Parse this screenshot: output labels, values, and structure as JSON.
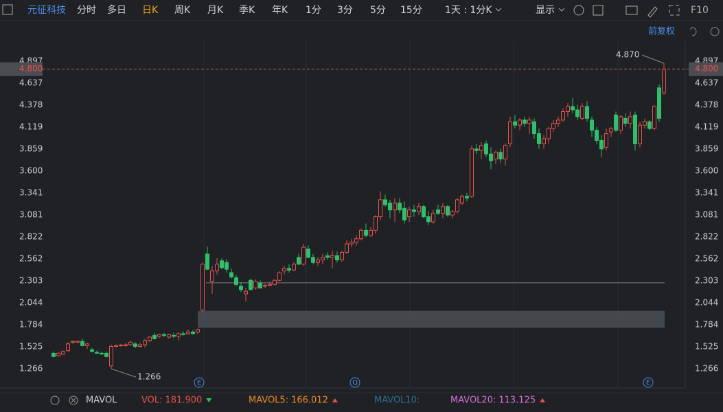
{
  "toolbar": {
    "stock_name": "元征科技",
    "periods": [
      "分时",
      "多日",
      "日K",
      "周K",
      "月K",
      "季K",
      "年K",
      "1分",
      "3分",
      "5分",
      "15分",
      "1天 : 1分K"
    ],
    "active_period": 2,
    "display": "显示",
    "f10": "F10",
    "adjust": "前复权"
  },
  "chart_data": {
    "type": "candlestick",
    "up_color": "#e6534c",
    "down_color": "#2ec06a",
    "ylim": [
      1.04,
      5.13
    ],
    "yticks": [
      4.897,
      4.637,
      4.378,
      4.119,
      3.859,
      {
        "value": 3.6,
        "label": "3.600"
      },
      3.341,
      3.081,
      2.822,
      2.562,
      2.303,
      2.044,
      1.784,
      1.525,
      1.266
    ],
    "last_price": {
      "value": 4.8,
      "label": "4.800"
    },
    "high_label": {
      "value": 4.87,
      "label": "4.870"
    },
    "low_label": 1.266,
    "gap_zone": [
      1.75,
      1.95
    ],
    "level_line": 2.28,
    "events": [
      "E",
      "Q",
      "E"
    ],
    "candles": [
      [
        1.45,
        1.47,
        1.4,
        1.41
      ],
      [
        1.42,
        1.46,
        1.41,
        1.45
      ],
      [
        1.44,
        1.48,
        1.43,
        1.47
      ],
      [
        1.48,
        1.58,
        1.47,
        1.56
      ],
      [
        1.58,
        1.6,
        1.56,
        1.59
      ],
      [
        1.58,
        1.6,
        1.57,
        1.59
      ],
      [
        1.59,
        1.62,
        1.53,
        1.54
      ],
      [
        1.54,
        1.57,
        1.5,
        1.56
      ],
      [
        1.49,
        1.51,
        1.46,
        1.47
      ],
      [
        1.46,
        1.48,
        1.44,
        1.45
      ],
      [
        1.45,
        1.47,
        1.43,
        1.44
      ],
      [
        1.45,
        1.47,
        1.4,
        1.41
      ],
      [
        1.3,
        1.55,
        1.266,
        1.53
      ],
      [
        1.53,
        1.55,
        1.52,
        1.54
      ],
      [
        1.54,
        1.56,
        1.53,
        1.545
      ],
      [
        1.54,
        1.57,
        1.53,
        1.55
      ],
      [
        1.55,
        1.6,
        1.54,
        1.58
      ],
      [
        1.56,
        1.58,
        1.51,
        1.53
      ],
      [
        1.53,
        1.57,
        1.52,
        1.55
      ],
      [
        1.55,
        1.62,
        1.52,
        1.6
      ],
      [
        1.6,
        1.65,
        1.58,
        1.64
      ],
      [
        1.66,
        1.69,
        1.61,
        1.62
      ],
      [
        1.65,
        1.68,
        1.63,
        1.67
      ],
      [
        1.67,
        1.69,
        1.64,
        1.66
      ],
      [
        1.64,
        1.68,
        1.62,
        1.67
      ],
      [
        1.66,
        1.69,
        1.63,
        1.65
      ],
      [
        1.65,
        1.7,
        1.6,
        1.68
      ],
      [
        1.68,
        1.71,
        1.66,
        1.67
      ],
      [
        1.68,
        1.73,
        1.67,
        1.7
      ],
      [
        1.7,
        1.72,
        1.67,
        1.68
      ],
      [
        1.7,
        1.74,
        1.68,
        1.73
      ],
      [
        1.96,
        2.52,
        1.93,
        2.5
      ],
      [
        2.62,
        2.71,
        2.43,
        2.44
      ],
      [
        2.3,
        2.48,
        2.15,
        2.42
      ],
      [
        2.42,
        2.57,
        2.38,
        2.5
      ],
      [
        2.54,
        2.57,
        2.44,
        2.46
      ],
      [
        2.52,
        2.56,
        2.4,
        2.44
      ],
      [
        2.4,
        2.45,
        2.33,
        2.35
      ],
      [
        2.34,
        2.37,
        2.24,
        2.26
      ],
      [
        2.24,
        2.29,
        2.17,
        2.2
      ],
      [
        2.15,
        2.22,
        2.06,
        2.18
      ],
      [
        2.31,
        2.33,
        2.19,
        2.2
      ],
      [
        2.22,
        2.32,
        2.2,
        2.3
      ],
      [
        2.28,
        2.31,
        2.21,
        2.22
      ],
      [
        2.24,
        2.27,
        2.22,
        2.25
      ],
      [
        2.25,
        2.29,
        2.24,
        2.26
      ],
      [
        2.26,
        2.32,
        2.25,
        2.31
      ],
      [
        2.31,
        2.42,
        2.3,
        2.4
      ],
      [
        2.42,
        2.48,
        2.38,
        2.45
      ],
      [
        2.45,
        2.5,
        2.4,
        2.43
      ],
      [
        2.43,
        2.52,
        2.42,
        2.5
      ],
      [
        2.58,
        2.62,
        2.49,
        2.5
      ],
      [
        2.5,
        2.74,
        2.48,
        2.7
      ],
      [
        2.68,
        2.72,
        2.57,
        2.58
      ],
      [
        2.58,
        2.62,
        2.5,
        2.52
      ],
      [
        2.52,
        2.58,
        2.48,
        2.55
      ],
      [
        2.55,
        2.62,
        2.5,
        2.58
      ],
      [
        2.6,
        2.64,
        2.55,
        2.58
      ],
      [
        2.58,
        2.66,
        2.45,
        2.6
      ],
      [
        2.6,
        2.65,
        2.52,
        2.55
      ],
      [
        2.55,
        2.66,
        2.53,
        2.64
      ],
      [
        2.64,
        2.78,
        2.62,
        2.74
      ],
      [
        2.74,
        2.8,
        2.7,
        2.76
      ],
      [
        2.76,
        2.84,
        2.72,
        2.8
      ],
      [
        2.8,
        2.92,
        2.78,
        2.9
      ],
      [
        2.9,
        2.98,
        2.82,
        2.84
      ],
      [
        2.84,
        2.94,
        2.82,
        2.9
      ],
      [
        2.9,
        3.08,
        2.86,
        3.06
      ],
      [
        3.06,
        3.36,
        3.02,
        3.26
      ],
      [
        3.26,
        3.32,
        3.18,
        3.2
      ],
      [
        3.22,
        3.26,
        3.04,
        3.14
      ],
      [
        3.14,
        3.28,
        3.0,
        3.22
      ],
      [
        3.22,
        3.28,
        3.1,
        3.14
      ],
      [
        3.16,
        3.24,
        2.98,
        3.02
      ],
      [
        3.06,
        3.18,
        3.0,
        3.14
      ],
      [
        3.14,
        3.2,
        3.06,
        3.12
      ],
      [
        3.12,
        3.22,
        3.08,
        3.18
      ],
      [
        3.18,
        3.2,
        3.04,
        3.06
      ],
      [
        3.06,
        3.12,
        2.96,
        3.0
      ],
      [
        3.0,
        3.14,
        2.98,
        3.1
      ],
      [
        3.14,
        3.2,
        3.08,
        3.1
      ],
      [
        3.1,
        3.22,
        3.04,
        3.18
      ],
      [
        3.18,
        3.2,
        3.06,
        3.08
      ],
      [
        3.08,
        3.14,
        3.04,
        3.12
      ],
      [
        3.12,
        3.28,
        3.1,
        3.26
      ],
      [
        3.22,
        3.32,
        3.2,
        3.3
      ],
      [
        3.3,
        3.34,
        3.24,
        3.28
      ],
      [
        3.3,
        3.9,
        3.28,
        3.86
      ],
      [
        3.86,
        3.92,
        3.8,
        3.84
      ],
      [
        3.84,
        3.94,
        3.74,
        3.9
      ],
      [
        3.92,
        3.96,
        3.76,
        3.8
      ],
      [
        3.8,
        3.88,
        3.62,
        3.72
      ],
      [
        3.74,
        3.84,
        3.68,
        3.82
      ],
      [
        3.82,
        3.86,
        3.7,
        3.74
      ],
      [
        3.74,
        3.92,
        3.66,
        3.9
      ],
      [
        3.92,
        4.24,
        3.88,
        4.18
      ],
      [
        4.18,
        4.26,
        4.1,
        4.14
      ],
      [
        4.14,
        4.22,
        4.08,
        4.2
      ],
      [
        4.2,
        4.24,
        4.12,
        4.16
      ],
      [
        4.16,
        4.24,
        4.04,
        4.2
      ],
      [
        4.18,
        4.22,
        3.98,
        4.04
      ],
      [
        4.04,
        4.1,
        3.86,
        3.92
      ],
      [
        3.92,
        4.02,
        3.86,
        3.98
      ],
      [
        3.98,
        4.12,
        3.92,
        4.1
      ],
      [
        4.1,
        4.2,
        4.06,
        4.16
      ],
      [
        4.16,
        4.24,
        4.12,
        4.2
      ],
      [
        4.2,
        4.34,
        4.18,
        4.3
      ],
      [
        4.3,
        4.4,
        4.24,
        4.36
      ],
      [
        4.36,
        4.46,
        4.28,
        4.32
      ],
      [
        4.32,
        4.38,
        4.2,
        4.24
      ],
      [
        4.22,
        4.4,
        4.2,
        4.36
      ],
      [
        4.36,
        4.42,
        4.18,
        4.22
      ],
      [
        4.2,
        4.24,
        4.0,
        4.08
      ],
      [
        4.08,
        4.12,
        3.92,
        3.96
      ],
      [
        3.96,
        4.02,
        3.76,
        3.86
      ],
      [
        3.88,
        4.1,
        3.84,
        4.04
      ],
      [
        4.06,
        4.12,
        4.0,
        4.1
      ],
      [
        4.26,
        4.3,
        4.06,
        4.08
      ],
      [
        4.08,
        4.26,
        4.04,
        4.24
      ],
      [
        4.22,
        4.28,
        4.12,
        4.16
      ],
      [
        4.16,
        4.3,
        4.1,
        4.24
      ],
      [
        4.26,
        4.3,
        3.84,
        3.92
      ],
      [
        3.92,
        4.18,
        3.88,
        4.14
      ],
      [
        4.14,
        4.22,
        4.1,
        4.18
      ],
      [
        4.18,
        4.2,
        4.08,
        4.1
      ],
      [
        4.1,
        4.38,
        4.08,
        4.36
      ],
      [
        4.58,
        4.62,
        4.18,
        4.22
      ],
      [
        4.52,
        4.87,
        4.5,
        4.8
      ]
    ]
  },
  "indicators": {
    "name": "MAVOL",
    "items": [
      {
        "label": "VOL:",
        "value": {
          "value": 181.9,
          "label": "181.900"
        },
        "color": "#e6534c",
        "trend": "down"
      },
      {
        "label": "MAVOL5:",
        "value": 166.012,
        "color": "#f08a24",
        "trend": "up"
      },
      {
        "label": "MAVOL10:",
        "color": "#2c6f8f"
      },
      {
        "label": "MAVOL20:",
        "value": 113.125,
        "color": "#d86fd8",
        "trend": "up"
      }
    ]
  }
}
